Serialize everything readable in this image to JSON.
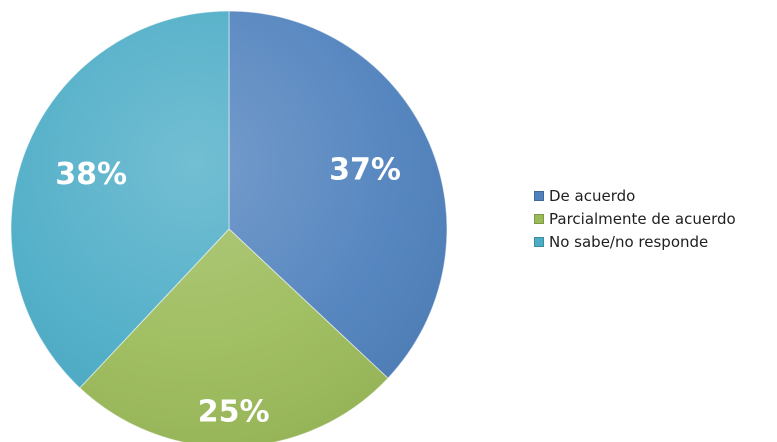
{
  "chart_data": {
    "type": "pie",
    "title": "",
    "categories": [
      "De acuerdo",
      "Parcialmente de acuerdo",
      "No sabe/no responde"
    ],
    "values": [
      37,
      25,
      38
    ],
    "data_labels": [
      "37%",
      "25%",
      "38%"
    ],
    "colors": [
      "#4f81bd",
      "#9bbb59",
      "#4bacc6"
    ],
    "start_angle": "12 o'clock",
    "direction": "clockwise",
    "legend_position": "right"
  },
  "legend": {
    "items": [
      {
        "label": "De acuerdo",
        "color": "#4f81bd"
      },
      {
        "label": "Parcialmente de acuerdo",
        "color": "#9bbb59"
      },
      {
        "label": "No sabe/no responde",
        "color": "#4bacc6"
      }
    ]
  }
}
